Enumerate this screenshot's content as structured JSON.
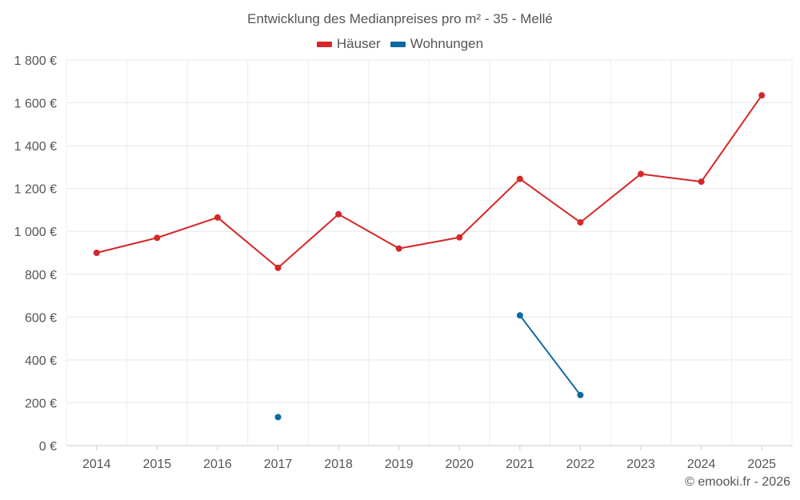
{
  "chart_data": {
    "type": "line",
    "title": "Entwicklung des Medianpreises pro m² - 35 - Mellé",
    "categories": [
      "2014",
      "2015",
      "2016",
      "2017",
      "2018",
      "2019",
      "2020",
      "2021",
      "2022",
      "2023",
      "2024",
      "2025"
    ],
    "y_ticks": [
      "0 €",
      "200 €",
      "400 €",
      "600 €",
      "800 €",
      "1 000 €",
      "1 200 €",
      "1 400 €",
      "1 600 €",
      "1 800 €"
    ],
    "ylim": [
      0,
      1800
    ],
    "xlabel": "",
    "ylabel": "",
    "grid": true,
    "legend_position": "top-center",
    "series": [
      {
        "name": "Häuser",
        "color": "#d62728",
        "values": [
          900,
          970,
          1065,
          830,
          1080,
          920,
          972,
          1245,
          1042,
          1268,
          1232,
          1635
        ]
      },
      {
        "name": "Wohnungen",
        "color": "#0a6aa1",
        "values": [
          null,
          null,
          null,
          133,
          null,
          null,
          null,
          608,
          236,
          null,
          null,
          null
        ]
      }
    ]
  },
  "credit": "© emooki.fr - 2026"
}
